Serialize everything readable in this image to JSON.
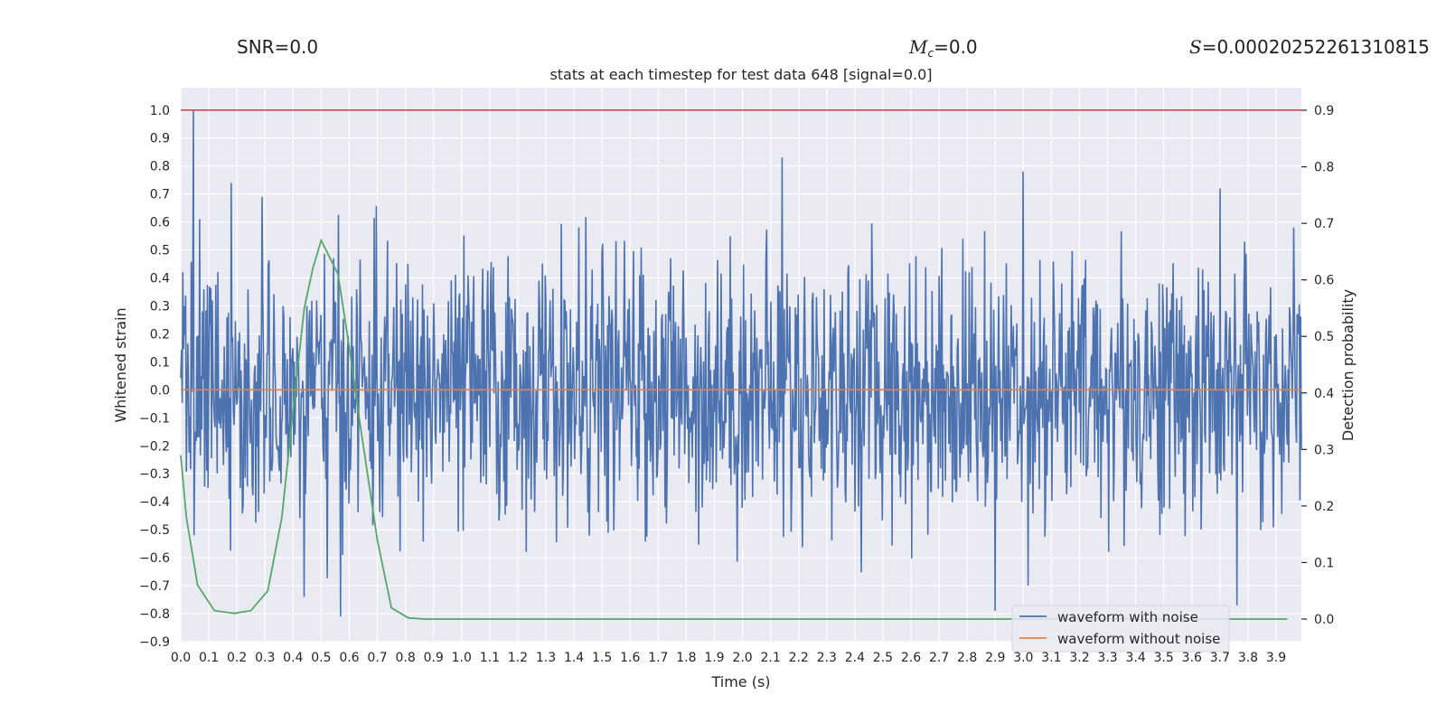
{
  "header": {
    "snr_label": "SNR=",
    "snr_value": "0.0",
    "mc_symbol": "M",
    "mc_sub": "c",
    "mc_value": "=0.0",
    "s_symbol": "S",
    "s_value": "=0.00020252261310815"
  },
  "chart_data": {
    "type": "line",
    "title": "stats at each timestep for test data 648 [signal=0.0]",
    "xlabel": "Time (s)",
    "ylabel": "Whitened strain",
    "y2label": "Detection probability",
    "xlim": [
      0.0,
      3.99
    ],
    "ylim": [
      -0.9,
      1.08
    ],
    "y2lim": [
      -0.04,
      0.94
    ],
    "xticks": [
      "0.0",
      "0.1",
      "0.2",
      "0.3",
      "0.4",
      "0.5",
      "0.6",
      "0.7",
      "0.8",
      "0.9",
      "1.0",
      "1.1",
      "1.2",
      "1.3",
      "1.4",
      "1.5",
      "1.6",
      "1.7",
      "1.8",
      "1.9",
      "2.0",
      "2.1",
      "2.2",
      "2.3",
      "2.4",
      "2.5",
      "2.6",
      "2.7",
      "2.8",
      "2.9",
      "3.0",
      "3.1",
      "3.2",
      "3.3",
      "3.4",
      "3.5",
      "3.6",
      "3.7",
      "3.8",
      "3.9"
    ],
    "yticks": [
      "1.0",
      "0.9",
      "0.8",
      "0.7",
      "0.6",
      "0.5",
      "0.4",
      "0.3",
      "0.2",
      "0.1",
      "0.0",
      "−0.1",
      "−0.2",
      "−0.3",
      "−0.4",
      "−0.5",
      "−0.6",
      "−0.7",
      "−0.8",
      "−0.9"
    ],
    "y2ticks": [
      "0.9",
      "0.8",
      "0.7",
      "0.6",
      "0.5",
      "0.4",
      "0.3",
      "0.2",
      "0.1",
      "0.0"
    ],
    "threshold": {
      "value": 1.0,
      "color": "#c44e52"
    },
    "series": [
      {
        "name": "waveform with noise",
        "color": "#4c72b0",
        "axis": "left",
        "generator": "noise",
        "samples": 1600,
        "scale": 0.24,
        "spikes": [
          {
            "x": 0.046,
            "y": 1.0
          },
          {
            "x": 0.048,
            "y": -0.52
          },
          {
            "x": 0.18,
            "y": 0.74
          },
          {
            "x": 0.29,
            "y": 0.69
          },
          {
            "x": 0.44,
            "y": -0.74
          },
          {
            "x": 0.57,
            "y": -0.81
          },
          {
            "x": 2.14,
            "y": 0.83
          },
          {
            "x": 2.9,
            "y": -0.79
          },
          {
            "x": 3.0,
            "y": 0.78
          },
          {
            "x": 3.76,
            "y": -0.77
          }
        ]
      },
      {
        "name": "waveform without noise",
        "color": "#dd8452",
        "axis": "left",
        "x": [
          0.0,
          3.99
        ],
        "values": [
          0.0,
          0.0
        ]
      },
      {
        "name": "detection probability",
        "color": "#55a868",
        "axis": "right",
        "x": [
          0.0,
          0.02,
          0.06,
          0.12,
          0.19,
          0.25,
          0.31,
          0.36,
          0.4,
          0.44,
          0.47,
          0.5,
          0.53,
          0.56,
          0.6,
          0.64,
          0.7,
          0.75,
          0.81,
          0.87,
          1.0,
          3.94
        ],
        "values": [
          0.29,
          0.18,
          0.06,
          0.015,
          0.01,
          0.015,
          0.05,
          0.18,
          0.37,
          0.55,
          0.62,
          0.67,
          0.64,
          0.61,
          0.48,
          0.34,
          0.14,
          0.02,
          0.002,
          0.0,
          0.0,
          0.0
        ]
      }
    ],
    "legend": {
      "position": "lower-right",
      "entries": [
        "waveform with noise",
        "waveform without noise"
      ]
    }
  },
  "colors": {
    "plot_background": "#eaeaf2",
    "grid": "#ffffff",
    "text": "#262626"
  }
}
